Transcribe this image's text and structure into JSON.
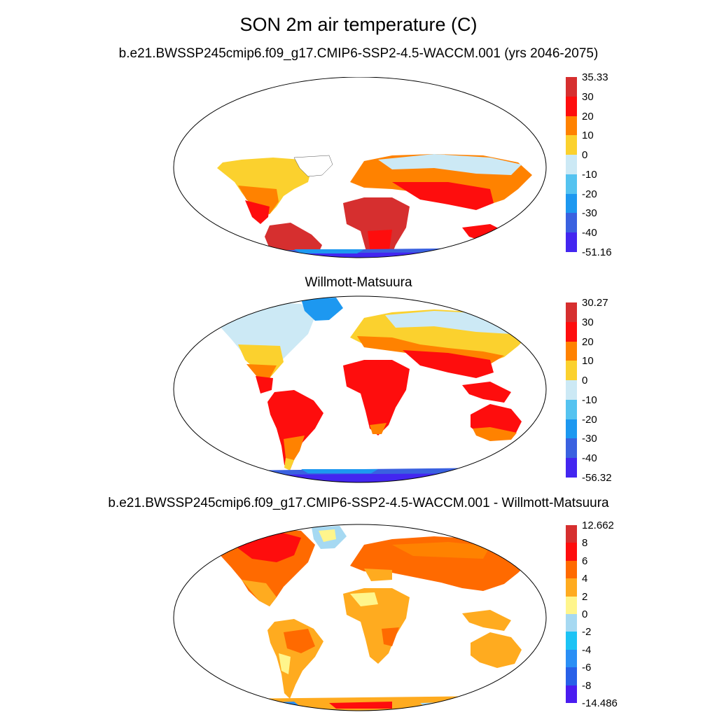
{
  "figure": {
    "title": "SON 2m air temperature (C)"
  },
  "panels": [
    {
      "subtitle": "b.e21.BWSSP245cmip6.f09_g17.CMIP6-SSP2-4.5-WACCM.001 (yrs 2046-2075)",
      "colorbar": {
        "labels": [
          "35.33",
          "30",
          "20",
          "10",
          "0",
          "-10",
          "-20",
          "-30",
          "-40",
          "-51.16"
        ],
        "colors": [
          "#d62f2f",
          "#fe0d0d",
          "#ff8200",
          "#fbd12e",
          "#cce9f5",
          "#55c3f0",
          "#1d98f0",
          "#3a61e0",
          "#4326f0"
        ]
      }
    },
    {
      "subtitle": "Willmott-Matsuura",
      "colorbar": {
        "labels": [
          "30.27",
          "30",
          "20",
          "10",
          "0",
          "-10",
          "-20",
          "-30",
          "-40",
          "-56.32"
        ],
        "colors": [
          "#d62f2f",
          "#fe0d0d",
          "#ff8200",
          "#fbd12e",
          "#cce9f5",
          "#55c3f0",
          "#1d98f0",
          "#3a61e0",
          "#4326f0"
        ]
      }
    },
    {
      "subtitle": "b.e21.BWSSP245cmip6.f09_g17.CMIP6-SSP2-4.5-WACCM.001 - Willmott-Matsuura",
      "colorbar": {
        "labels": [
          "12.662",
          "8",
          "6",
          "4",
          "2",
          "0",
          "-2",
          "-4",
          "-6",
          "-8",
          "-14.486"
        ],
        "colors": [
          "#d62f2f",
          "#fe0d0d",
          "#ff6a00",
          "#ffab1f",
          "#fff58c",
          "#a6d9f2",
          "#1cc3f5",
          "#2a8ff5",
          "#2860e8",
          "#4a1cf0"
        ]
      }
    }
  ]
}
